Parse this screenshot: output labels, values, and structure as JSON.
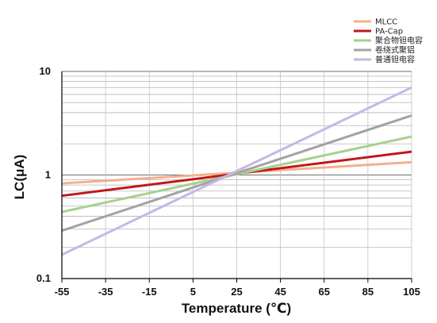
{
  "chart_data": {
    "type": "line",
    "title": "",
    "xlabel": "Temperature (℃)",
    "ylabel": "LC(μA)",
    "x_ticks": [
      -55,
      -35,
      -15,
      5,
      25,
      45,
      65,
      85,
      105
    ],
    "xlim": [
      -55,
      105
    ],
    "y_scale": "log",
    "ylim": [
      0.1,
      10
    ],
    "y_tick_labels": [
      "10",
      "1",
      "0.1"
    ],
    "y_tick_values": [
      10,
      1,
      0.1
    ],
    "grid": true,
    "legend_position": "top-right",
    "series": [
      {
        "name": "MLCC",
        "color": "#f2b08e",
        "x": [
          -55,
          105
        ],
        "y": [
          0.83,
          1.33
        ]
      },
      {
        "name": "PA-Cap",
        "color": "#c0171b",
        "x": [
          -55,
          105
        ],
        "y": [
          0.63,
          1.68
        ]
      },
      {
        "name": "聚合物钽电容",
        "color": "#a6d18c",
        "x": [
          -55,
          105
        ],
        "y": [
          0.44,
          2.35
        ]
      },
      {
        "name": "卷绕式聚铝",
        "color": "#a3a3a3",
        "x": [
          -55,
          105
        ],
        "y": [
          0.29,
          3.75
        ]
      },
      {
        "name": "普通钽电容",
        "color": "#c8b6e6",
        "x": [
          -55,
          105
        ],
        "y": [
          0.17,
          7.0
        ]
      }
    ]
  }
}
